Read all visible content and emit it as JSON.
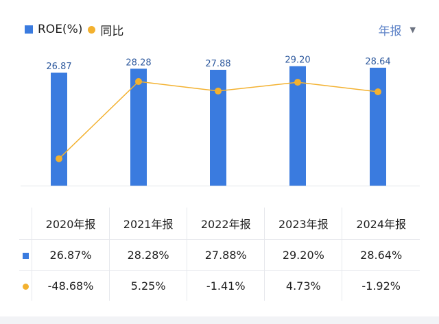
{
  "legend": {
    "bar_label": "ROE(%)",
    "line_label": "同比"
  },
  "period_selector": {
    "label": "年报",
    "caret": "▼"
  },
  "colors": {
    "bar": "#3a7bdf",
    "line": "#f3b12f",
    "negative": "#1a9b7b",
    "positive": "#d6454d",
    "bar_label": "#2f5a9e"
  },
  "chart_data": {
    "type": "bar",
    "categories": [
      "2020年报",
      "2021年报",
      "2022年报",
      "2023年报",
      "2024年报"
    ],
    "series": [
      {
        "name": "ROE(%)",
        "type": "bar",
        "values": [
          26.87,
          28.28,
          27.88,
          29.2,
          28.64
        ],
        "labels": [
          "26.87",
          "28.28",
          "27.88",
          "29.20",
          "28.64"
        ]
      },
      {
        "name": "同比",
        "type": "line",
        "values": [
          -48.68,
          5.25,
          -1.41,
          4.73,
          -1.92
        ]
      }
    ]
  },
  "table": {
    "headers": [
      "2020年报",
      "2021年报",
      "2022年报",
      "2023年报",
      "2024年报"
    ],
    "roe_row": [
      "26.87%",
      "28.28%",
      "27.88%",
      "29.20%",
      "28.64%"
    ],
    "yoy_row": [
      "-48.68%",
      "5.25%",
      "-1.41%",
      "4.73%",
      "-1.92%"
    ]
  }
}
